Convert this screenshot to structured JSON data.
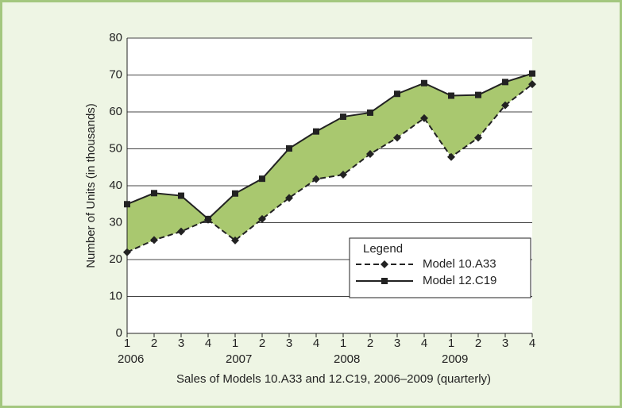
{
  "chart_data": {
    "type": "line",
    "xlabel": "Sales of Models 10.A33 and 12.C19, 2006–2009 (quarterly)",
    "ylabel": "Number of Units (in thousands)",
    "categories": [
      "1",
      "2",
      "3",
      "4",
      "1",
      "2",
      "3",
      "4",
      "1",
      "2",
      "3",
      "4",
      "1",
      "2",
      "3",
      "4"
    ],
    "year_labels": [
      "2006",
      "2007",
      "2008",
      "2009"
    ],
    "series": [
      {
        "name": "Model 10.A33",
        "color": "#222222",
        "line_style": "dashed",
        "marker": "diamond",
        "values": [
          22,
          25.3,
          27.6,
          30.8,
          25.2,
          31,
          36.7,
          41.8,
          43,
          48.6,
          53,
          58.3,
          47.8,
          53,
          61.8,
          67.5
        ]
      },
      {
        "name": "Model 12.C19",
        "color": "#222222",
        "line_style": "solid",
        "marker": "square",
        "values": [
          35,
          38,
          37.3,
          31,
          37.9,
          41.9,
          50.1,
          54.7,
          58.7,
          59.8,
          64.9,
          67.8,
          64.4,
          64.6,
          68.1,
          70.4
        ]
      }
    ],
    "fill_between_color": "#a9c86f",
    "ylim": [
      0,
      80
    ],
    "yticks": [
      0,
      10,
      20,
      30,
      40,
      50,
      60,
      70,
      80
    ],
    "grid": true,
    "legend_title": "Legend",
    "legend_position": "lower right"
  }
}
